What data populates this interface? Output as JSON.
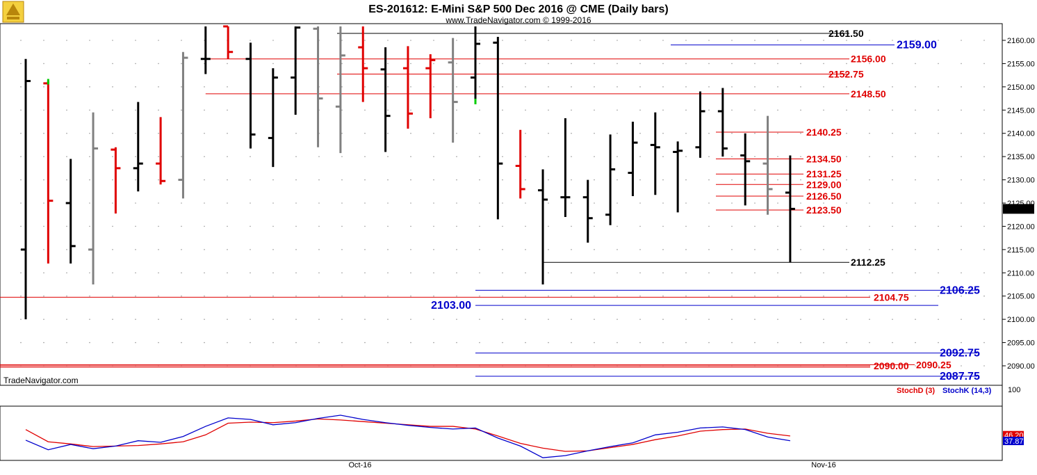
{
  "chart_data": {
    "type": "ohlc",
    "title": "ES-201612:  E-Mini S&P 500 Dec 2016 @ CME  (Daily bars)",
    "subtitle": "www.TradeNavigator.com © 1999-2016",
    "watermark": "TradeNavigator.com",
    "price_axis": {
      "ylim": [
        2085,
        2163
      ],
      "ticks": [
        "2090.00",
        "2095.00",
        "2100.00",
        "2105.00",
        "2110.00",
        "2115.00",
        "2120.00",
        "2125.00",
        "2130.00",
        "2135.00",
        "2140.00",
        "2145.00",
        "2150.00",
        "2155.00",
        "2160.00"
      ],
      "last_price": "2123.75"
    },
    "date_axis": {
      "labels": [
        "Oct-16",
        "Nov-16"
      ]
    },
    "bar_colors": {
      "up": "#000000",
      "down": "#e00000",
      "inside": "#808080",
      "highlight": "#00cc00"
    },
    "bars": [
      {
        "o": 2115,
        "h": 2156,
        "l": 2100,
        "c": 2151.25,
        "color": "black"
      },
      {
        "o": 2150.75,
        "h": 2151.25,
        "l": 2112,
        "c": 2125.5,
        "color": "red"
      },
      {
        "o": 2125,
        "h": 2134.5,
        "l": 2112,
        "c": 2115.75,
        "color": "black"
      },
      {
        "o": 2115,
        "h": 2144.5,
        "l": 2107.5,
        "c": 2136.75,
        "color": "gray"
      },
      {
        "o": 2136.5,
        "h": 2137,
        "l": 2122.75,
        "c": 2132.5,
        "color": "red"
      },
      {
        "o": 2132.5,
        "h": 2146.75,
        "l": 2127.5,
        "c": 2133.5,
        "color": "black"
      },
      {
        "o": 2133.5,
        "h": 2143.5,
        "l": 2129,
        "c": 2129.75,
        "color": "red"
      },
      {
        "o": 2130,
        "h": 2157.5,
        "l": 2126,
        "c": 2156.25,
        "color": "gray"
      },
      {
        "o": 2156,
        "h": 2163,
        "l": 2152.75,
        "c": 2156,
        "color": "black"
      },
      {
        "o": 2163,
        "h": 2163,
        "l": 2156,
        "c": 2157.5,
        "color": "red"
      },
      {
        "o": 2156,
        "h": 2159.5,
        "l": 2136.75,
        "c": 2139.75,
        "color": "black"
      },
      {
        "o": 2139,
        "h": 2154,
        "l": 2132.75,
        "c": 2152,
        "color": "black"
      },
      {
        "o": 2152,
        "h": 2163,
        "l": 2144,
        "c": 2162.75,
        "color": "black"
      },
      {
        "o": 2162.5,
        "h": 2163,
        "l": 2137,
        "c": 2147.5,
        "color": "gray"
      },
      {
        "o": 2145.75,
        "h": 2163,
        "l": 2135.75,
        "c": 2156.75,
        "color": "gray"
      },
      {
        "o": 2158.5,
        "h": 2163,
        "l": 2146.75,
        "c": 2154,
        "color": "red"
      },
      {
        "o": 2153.75,
        "h": 2158.5,
        "l": 2136,
        "c": 2143.75,
        "color": "black"
      },
      {
        "o": 2154,
        "h": 2158.75,
        "l": 2141,
        "c": 2144.25,
        "color": "red"
      },
      {
        "o": 2154,
        "h": 2157,
        "l": 2143.25,
        "c": 2155.75,
        "color": "red"
      },
      {
        "o": 2155.25,
        "h": 2160.5,
        "l": 2138,
        "c": 2146.75,
        "color": "gray"
      },
      {
        "o": 2152,
        "h": 2163,
        "l": 2146.5,
        "c": 2159.25,
        "color": "black"
      },
      {
        "o": 2159.5,
        "h": 2160.75,
        "l": 2121.5,
        "c": 2133.5,
        "color": "black"
      },
      {
        "o": 2133,
        "h": 2140.75,
        "l": 2126,
        "c": 2128,
        "color": "red"
      },
      {
        "o": 2127.75,
        "h": 2132.25,
        "l": 2107.5,
        "c": 2125.75,
        "color": "black"
      },
      {
        "o": 2126.25,
        "h": 2143.25,
        "l": 2122,
        "c": 2126.25,
        "color": "black"
      },
      {
        "o": 2126.25,
        "h": 2130,
        "l": 2116.5,
        "c": 2121.75,
        "color": "black"
      },
      {
        "o": 2122.5,
        "h": 2139.75,
        "l": 2120.25,
        "c": 2132.25,
        "color": "black"
      },
      {
        "o": 2131.5,
        "h": 2142.5,
        "l": 2126.5,
        "c": 2138,
        "color": "black"
      },
      {
        "o": 2137.5,
        "h": 2144.5,
        "l": 2126.75,
        "c": 2137,
        "color": "black"
      },
      {
        "o": 2136,
        "h": 2138.25,
        "l": 2123,
        "c": 2136.25,
        "color": "black"
      },
      {
        "o": 2137,
        "h": 2149,
        "l": 2134.75,
        "c": 2144.75,
        "color": "black"
      },
      {
        "o": 2144.75,
        "h": 2149.75,
        "l": 2135,
        "c": 2136.75,
        "color": "black"
      },
      {
        "o": 2135.25,
        "h": 2140,
        "l": 2124.5,
        "c": 2134,
        "color": "black"
      },
      {
        "o": 2133.5,
        "h": 2143.75,
        "l": 2122.5,
        "c": 2128,
        "color": "gray"
      },
      {
        "o": 2127.25,
        "h": 2135.25,
        "l": 2112.25,
        "c": 2123.75,
        "color": "black"
      }
    ],
    "highlight_ticks": [
      {
        "bar": 1,
        "price": 2151.25,
        "side": "right"
      },
      {
        "bar": 20,
        "price": 2147.0,
        "side": "right"
      }
    ],
    "levels": [
      {
        "price": 2161.5,
        "label": "2161.50",
        "color": "#000000",
        "from_bar": 14,
        "to_bar": null,
        "label_pos": "right",
        "size": "normal"
      },
      {
        "price": 2159.0,
        "label": "2159.00",
        "color": "#0000cc",
        "from_bar": 29,
        "to_bar": null,
        "label_pos": "far",
        "size": "big"
      },
      {
        "price": 2156.0,
        "label": "2156.00",
        "color": "#e00000",
        "from_bar": 8,
        "to_bar": null,
        "label_pos": "right",
        "size": "normal"
      },
      {
        "price": 2152.75,
        "label": "2152.75",
        "color": "#e00000",
        "from_bar": 14,
        "to_bar": null,
        "label_pos": "right",
        "size": "normal"
      },
      {
        "price": 2148.5,
        "label": "2148.50",
        "color": "#e00000",
        "from_bar": 8,
        "to_bar": null,
        "label_pos": "right",
        "size": "normal"
      },
      {
        "price": 2140.25,
        "label": "2140.25",
        "color": "#e00000",
        "from_bar": 31,
        "to_bar": null,
        "label_pos": "near",
        "size": "normal"
      },
      {
        "price": 2134.5,
        "label": "2134.50",
        "color": "#e00000",
        "from_bar": 31,
        "to_bar": null,
        "label_pos": "near",
        "size": "normal"
      },
      {
        "price": 2131.25,
        "label": "2131.25",
        "color": "#e00000",
        "from_bar": 31,
        "to_bar": null,
        "label_pos": "near",
        "size": "normal"
      },
      {
        "price": 2129.0,
        "label": "2129.00",
        "color": "#e00000",
        "from_bar": 31,
        "to_bar": null,
        "label_pos": "near",
        "size": "normal"
      },
      {
        "price": 2126.5,
        "label": "2126.50",
        "color": "#e00000",
        "from_bar": 31,
        "to_bar": null,
        "label_pos": "near",
        "size": "normal"
      },
      {
        "price": 2123.5,
        "label": "2123.50",
        "color": "#e00000",
        "from_bar": 31,
        "to_bar": null,
        "label_pos": "near",
        "size": "normal"
      },
      {
        "price": 2112.25,
        "label": "2112.25",
        "color": "#000000",
        "from_bar": 23,
        "to_bar": null,
        "label_pos": "right",
        "size": "normal"
      },
      {
        "price": 2106.25,
        "label": "2106.25",
        "color": "#0000cc",
        "from_bar": 20,
        "to_bar": null,
        "label_pos": "far",
        "size": "big"
      },
      {
        "price": 2104.75,
        "label": "2104.75",
        "color": "#e00000",
        "from_bar": 0,
        "to_bar": null,
        "label_pos": "right2",
        "size": "normal"
      },
      {
        "price": 2103.0,
        "label": "2103.00",
        "color": "#0000cc",
        "from_bar": 20,
        "to_bar": null,
        "label_pos": "left",
        "size": "big"
      },
      {
        "price": 2092.75,
        "label": "2092.75",
        "color": "#0000cc",
        "from_bar": 20,
        "to_bar": null,
        "label_pos": "far",
        "size": "big"
      },
      {
        "price": 2090.25,
        "label": "2090.25",
        "color": "#e00000",
        "from_bar": 0,
        "to_bar": null,
        "label_pos": "mid",
        "size": "normal"
      },
      {
        "price": 2090.0,
        "label": "2090.00",
        "color": "#e00000",
        "from_bar": 0,
        "to_bar": null,
        "label_pos": "right2",
        "size": "normal"
      },
      {
        "price": 2087.75,
        "label": "2087.75",
        "color": "#0000cc",
        "from_bar": 20,
        "to_bar": null,
        "label_pos": "far",
        "size": "big"
      }
    ],
    "indicator": {
      "ylim": [
        0,
        100
      ],
      "axis_label": "100",
      "legend": [
        {
          "name": "StochD (3)",
          "color": "#e00000"
        },
        {
          "name": "StochK (14,3)",
          "color": "#0000cc"
        }
      ],
      "last_values": {
        "d": "46.20",
        "k": "37.87"
      },
      "series": [
        {
          "name": "StochD (3)",
          "color": "#e00000",
          "values": [
            58,
            35,
            31,
            26,
            27,
            28,
            31,
            35,
            48,
            70,
            72,
            71,
            74,
            78,
            76,
            73,
            70,
            67,
            64,
            64,
            59,
            46,
            32,
            23,
            17,
            18,
            24,
            30,
            39,
            46,
            55,
            58,
            59,
            51,
            46
          ]
        },
        {
          "name": "StochK (14,3)",
          "color": "#0000cc",
          "values": [
            38,
            20,
            30,
            22,
            27,
            37,
            34,
            45,
            64,
            80,
            77,
            67,
            71,
            79,
            85,
            77,
            71,
            66,
            62,
            59,
            61,
            42,
            27,
            5,
            9,
            18,
            26,
            33,
            48,
            53,
            61,
            63,
            58,
            44,
            37
          ]
        }
      ]
    }
  }
}
